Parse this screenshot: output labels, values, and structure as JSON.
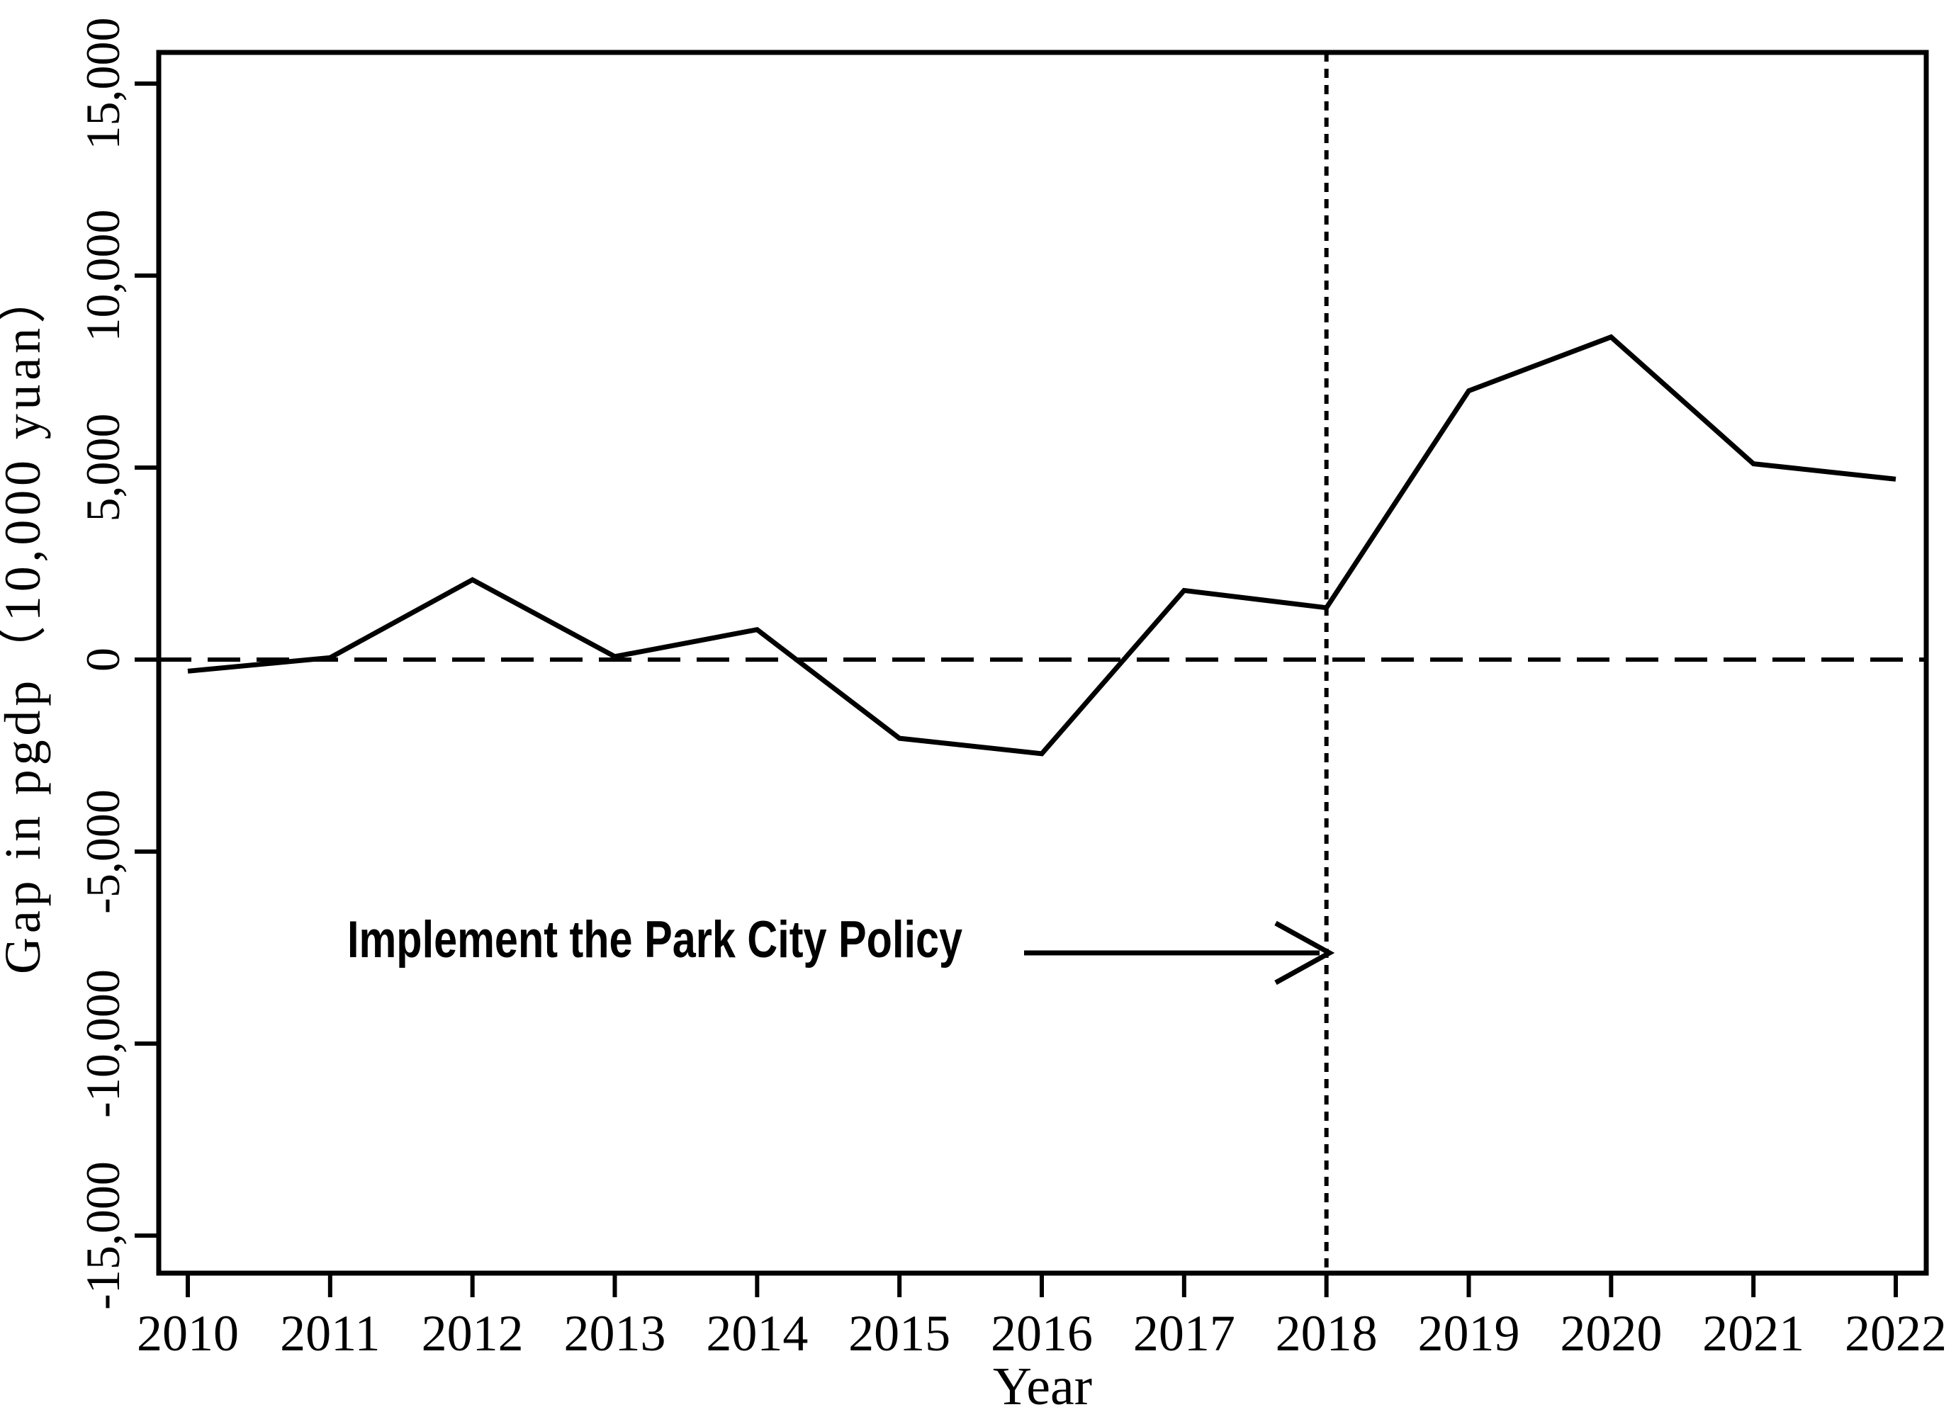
{
  "figure": {
    "background": "#ffffff",
    "ink_color": "#000000"
  },
  "chart_data": {
    "type": "line",
    "title": "",
    "xlabel": "Year",
    "ylabel": "Gap in pgdp（10,000 yuan）",
    "x": [
      2010,
      2011,
      2012,
      2013,
      2014,
      2015,
      2016,
      2017,
      2018,
      2019,
      2020,
      2021,
      2022
    ],
    "series": [
      {
        "name": "Gap in pgdp",
        "values": [
          -300,
          50,
          2080,
          80,
          780,
          -2050,
          -2450,
          1800,
          1350,
          7000,
          8400,
          5100,
          4700
        ]
      }
    ],
    "xlim": [
      2009.8,
      2022.2
    ],
    "ylim": [
      -15000,
      15000
    ],
    "xticks": [
      2010,
      2011,
      2012,
      2013,
      2014,
      2015,
      2016,
      2017,
      2018,
      2019,
      2020,
      2021,
      2022
    ],
    "xtick_labels": [
      "2010",
      "2011",
      "2012",
      "2013",
      "2014",
      "2015",
      "2016",
      "2017",
      "2018",
      "2019",
      "2020",
      "2021",
      "2022"
    ],
    "yticks": [
      15000,
      10000,
      5000,
      0,
      -5000,
      -10000,
      -15000
    ],
    "ytick_labels": [
      "15,000",
      "10,000",
      "5,000",
      "0",
      "-5,000",
      "-10,000",
      "-15,000"
    ],
    "grid": false,
    "legend": null,
    "line_color": "#000000",
    "reference_lines": {
      "horizontal_zero": {
        "y": 0,
        "style": "dashed"
      },
      "vertical_policy": {
        "x": 2018,
        "style": "dotted"
      }
    },
    "annotation": {
      "text": "Implement the Park City Policy",
      "arrow_points_to_x": 2018,
      "arrow_y_value": -7600
    }
  }
}
